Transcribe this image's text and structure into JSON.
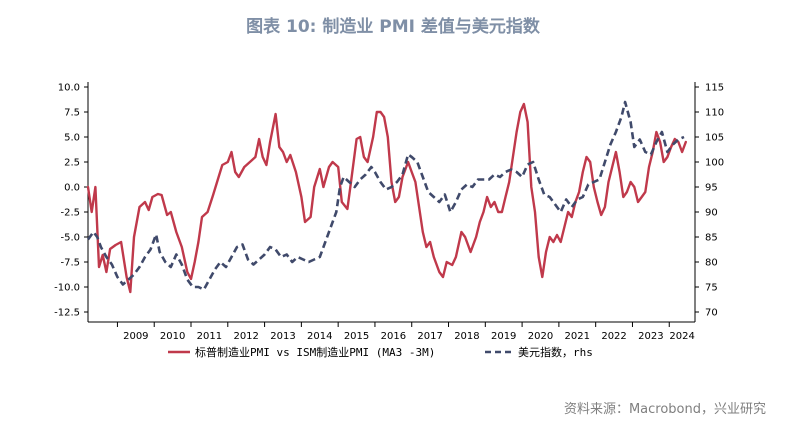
{
  "title": "图表 10: 制造业 PMI 差值与美元指数",
  "source": "资料来源：Macrobond，兴业研究",
  "chart_data": {
    "type": "line",
    "title": "图表 10: 制造业 PMI 差值与美元指数",
    "x_range": [
      2008.2,
      2024.7
    ],
    "x_tick_labels": [
      "2009",
      "2010",
      "2011",
      "2012",
      "2013",
      "2014",
      "2015",
      "2016",
      "2017",
      "2018",
      "2019",
      "2020",
      "2021",
      "2022",
      "2023",
      "2024"
    ],
    "y_left": {
      "min": -13.5,
      "max": 10.5,
      "ticks": [
        10.0,
        7.5,
        5.0,
        2.5,
        0.0,
        -2.5,
        -5.0,
        -7.5,
        -10.0,
        -12.5
      ]
    },
    "y_left_tick_labels": [
      "10.0",
      "7.5",
      "5.0",
      "2.5",
      "0.0",
      "-2.5",
      "-5.0",
      "-7.5",
      "-10.0",
      "-12.5"
    ],
    "y_right": {
      "min": 68,
      "max": 116,
      "ticks": [
        115,
        110,
        105,
        100,
        95,
        90,
        85,
        80,
        75,
        70
      ]
    },
    "y_right_tick_labels": [
      "115",
      "110",
      "105",
      "100",
      "95",
      "90",
      "85",
      "80",
      "75",
      "70"
    ],
    "series": [
      {
        "name": "标普制造业PMI vs ISM制造业PMI (MA3 -3M)",
        "axis": "left",
        "color": "#c0394b",
        "style": "solid",
        "points": [
          [
            2008.2,
            0.0
          ],
          [
            2008.3,
            -2.5
          ],
          [
            2008.4,
            0.0
          ],
          [
            2008.5,
            -8.0
          ],
          [
            2008.6,
            -6.8
          ],
          [
            2008.7,
            -8.5
          ],
          [
            2008.8,
            -6.2
          ],
          [
            2008.95,
            -5.8
          ],
          [
            2009.1,
            -5.5
          ],
          [
            2009.25,
            -9.0
          ],
          [
            2009.35,
            -10.5
          ],
          [
            2009.45,
            -5.0
          ],
          [
            2009.6,
            -2.0
          ],
          [
            2009.75,
            -1.5
          ],
          [
            2009.85,
            -2.3
          ],
          [
            2009.95,
            -1.0
          ],
          [
            2010.1,
            -0.7
          ],
          [
            2010.2,
            -0.8
          ],
          [
            2010.35,
            -2.8
          ],
          [
            2010.45,
            -2.5
          ],
          [
            2010.6,
            -4.5
          ],
          [
            2010.75,
            -6.0
          ],
          [
            2010.9,
            -8.5
          ],
          [
            2011.0,
            -9.2
          ],
          [
            2011.1,
            -7.5
          ],
          [
            2011.2,
            -5.5
          ],
          [
            2011.3,
            -3.0
          ],
          [
            2011.45,
            -2.5
          ],
          [
            2011.6,
            -0.8
          ],
          [
            2011.75,
            1.0
          ],
          [
            2011.85,
            2.2
          ],
          [
            2012.0,
            2.5
          ],
          [
            2012.1,
            3.5
          ],
          [
            2012.2,
            1.5
          ],
          [
            2012.3,
            1.0
          ],
          [
            2012.45,
            2.0
          ],
          [
            2012.6,
            2.5
          ],
          [
            2012.75,
            3.0
          ],
          [
            2012.85,
            4.8
          ],
          [
            2012.95,
            3.0
          ],
          [
            2013.05,
            2.2
          ],
          [
            2013.15,
            4.5
          ],
          [
            2013.3,
            7.3
          ],
          [
            2013.4,
            4.0
          ],
          [
            2013.5,
            3.5
          ],
          [
            2013.6,
            2.5
          ],
          [
            2013.7,
            3.2
          ],
          [
            2013.85,
            1.5
          ],
          [
            2014.0,
            -1.0
          ],
          [
            2014.1,
            -3.5
          ],
          [
            2014.25,
            -3.0
          ],
          [
            2014.35,
            0.0
          ],
          [
            2014.5,
            1.8
          ],
          [
            2014.6,
            0.0
          ],
          [
            2014.75,
            2.0
          ],
          [
            2014.85,
            2.5
          ],
          [
            2015.0,
            2.0
          ],
          [
            2015.1,
            -1.5
          ],
          [
            2015.25,
            -2.2
          ],
          [
            2015.35,
            0.5
          ],
          [
            2015.5,
            4.8
          ],
          [
            2015.6,
            5.0
          ],
          [
            2015.7,
            3.0
          ],
          [
            2015.8,
            2.5
          ],
          [
            2015.95,
            5.0
          ],
          [
            2016.05,
            7.5
          ],
          [
            2016.15,
            7.5
          ],
          [
            2016.25,
            7.0
          ],
          [
            2016.35,
            5.0
          ],
          [
            2016.45,
            0.5
          ],
          [
            2016.55,
            -1.5
          ],
          [
            2016.65,
            -1.0
          ],
          [
            2016.75,
            1.0
          ],
          [
            2016.9,
            2.5
          ],
          [
            2017.0,
            1.5
          ],
          [
            2017.1,
            0.5
          ],
          [
            2017.2,
            -2.0
          ],
          [
            2017.3,
            -4.5
          ],
          [
            2017.4,
            -6.0
          ],
          [
            2017.5,
            -5.5
          ],
          [
            2017.6,
            -7.0
          ],
          [
            2017.75,
            -8.5
          ],
          [
            2017.85,
            -9.0
          ],
          [
            2017.95,
            -7.5
          ],
          [
            2018.1,
            -7.8
          ],
          [
            2018.2,
            -7.0
          ],
          [
            2018.35,
            -4.5
          ],
          [
            2018.45,
            -5.0
          ],
          [
            2018.6,
            -6.5
          ],
          [
            2018.75,
            -5.0
          ],
          [
            2018.85,
            -3.5
          ],
          [
            2018.95,
            -2.5
          ],
          [
            2019.05,
            -1.0
          ],
          [
            2019.15,
            -2.0
          ],
          [
            2019.25,
            -1.5
          ],
          [
            2019.35,
            -2.5
          ],
          [
            2019.45,
            -2.5
          ],
          [
            2019.55,
            -1.0
          ],
          [
            2019.65,
            0.5
          ],
          [
            2019.75,
            3.0
          ],
          [
            2019.85,
            5.5
          ],
          [
            2019.95,
            7.5
          ],
          [
            2020.05,
            8.3
          ],
          [
            2020.15,
            6.5
          ],
          [
            2020.25,
            0.0
          ],
          [
            2020.35,
            -2.5
          ],
          [
            2020.45,
            -7.0
          ],
          [
            2020.55,
            -9.0
          ],
          [
            2020.65,
            -6.5
          ],
          [
            2020.75,
            -5.0
          ],
          [
            2020.85,
            -5.5
          ],
          [
            2020.95,
            -4.8
          ],
          [
            2021.05,
            -5.5
          ],
          [
            2021.15,
            -4.0
          ],
          [
            2021.25,
            -2.5
          ],
          [
            2021.35,
            -3.0
          ],
          [
            2021.45,
            -1.5
          ],
          [
            2021.55,
            -0.5
          ],
          [
            2021.65,
            1.5
          ],
          [
            2021.75,
            3.0
          ],
          [
            2021.85,
            2.5
          ],
          [
            2021.95,
            0.0
          ],
          [
            2022.05,
            -1.5
          ],
          [
            2022.15,
            -2.8
          ],
          [
            2022.25,
            -2.0
          ],
          [
            2022.35,
            0.5
          ],
          [
            2022.45,
            2.0
          ],
          [
            2022.55,
            3.5
          ],
          [
            2022.65,
            1.5
          ],
          [
            2022.75,
            -1.0
          ],
          [
            2022.85,
            -0.5
          ],
          [
            2022.95,
            0.5
          ],
          [
            2023.05,
            0.0
          ],
          [
            2023.15,
            -1.5
          ],
          [
            2023.25,
            -1.0
          ],
          [
            2023.35,
            -0.5
          ],
          [
            2023.45,
            2.0
          ],
          [
            2023.55,
            3.5
          ],
          [
            2023.65,
            5.5
          ],
          [
            2023.75,
            4.5
          ],
          [
            2023.85,
            2.5
          ],
          [
            2023.95,
            3.0
          ],
          [
            2024.05,
            4.0
          ],
          [
            2024.15,
            4.8
          ],
          [
            2024.25,
            4.5
          ],
          [
            2024.35,
            3.5
          ],
          [
            2024.45,
            4.5
          ]
        ]
      },
      {
        "name": "美元指数，rhs",
        "axis": "right",
        "color": "#404a6b",
        "style": "dashed",
        "points": [
          [
            2008.2,
            84.5
          ],
          [
            2008.35,
            86.0
          ],
          [
            2008.45,
            85.0
          ],
          [
            2008.55,
            83.0
          ],
          [
            2008.7,
            81.0
          ],
          [
            2008.85,
            79.5
          ],
          [
            2009.0,
            77.0
          ],
          [
            2009.15,
            75.5
          ],
          [
            2009.3,
            76.5
          ],
          [
            2009.45,
            77.5
          ],
          [
            2009.6,
            79.0
          ],
          [
            2009.75,
            81.0
          ],
          [
            2009.9,
            82.5
          ],
          [
            2010.05,
            85.5
          ],
          [
            2010.15,
            82.0
          ],
          [
            2010.3,
            80.0
          ],
          [
            2010.45,
            79.0
          ],
          [
            2010.6,
            81.5
          ],
          [
            2010.75,
            79.5
          ],
          [
            2010.9,
            76.5
          ],
          [
            2011.05,
            75.0
          ],
          [
            2011.2,
            75.0
          ],
          [
            2011.35,
            74.5
          ],
          [
            2011.5,
            76.5
          ],
          [
            2011.65,
            78.5
          ],
          [
            2011.8,
            80.0
          ],
          [
            2011.95,
            79.0
          ],
          [
            2012.1,
            81.0
          ],
          [
            2012.25,
            83.0
          ],
          [
            2012.4,
            83.5
          ],
          [
            2012.55,
            80.5
          ],
          [
            2012.7,
            79.5
          ],
          [
            2012.85,
            80.5
          ],
          [
            2013.0,
            81.5
          ],
          [
            2013.15,
            83.0
          ],
          [
            2013.3,
            82.5
          ],
          [
            2013.45,
            81.0
          ],
          [
            2013.6,
            81.5
          ],
          [
            2013.75,
            80.0
          ],
          [
            2013.9,
            81.0
          ],
          [
            2014.05,
            80.5
          ],
          [
            2014.2,
            80.0
          ],
          [
            2014.35,
            80.5
          ],
          [
            2014.5,
            81.0
          ],
          [
            2014.65,
            84.0
          ],
          [
            2014.8,
            87.0
          ],
          [
            2014.95,
            90.0
          ],
          [
            2015.05,
            95.0
          ],
          [
            2015.15,
            97.0
          ],
          [
            2015.3,
            96.0
          ],
          [
            2015.45,
            95.0
          ],
          [
            2015.6,
            96.5
          ],
          [
            2015.75,
            97.5
          ],
          [
            2015.9,
            99.0
          ],
          [
            2016.0,
            98.0
          ],
          [
            2016.15,
            96.0
          ],
          [
            2016.3,
            94.5
          ],
          [
            2016.45,
            95.0
          ],
          [
            2016.6,
            96.0
          ],
          [
            2016.75,
            97.5
          ],
          [
            2016.9,
            101.5
          ],
          [
            2017.0,
            101.0
          ],
          [
            2017.15,
            100.0
          ],
          [
            2017.3,
            97.0
          ],
          [
            2017.45,
            94.0
          ],
          [
            2017.6,
            93.0
          ],
          [
            2017.75,
            92.0
          ],
          [
            2017.9,
            93.5
          ],
          [
            2018.05,
            90.0
          ],
          [
            2018.2,
            92.0
          ],
          [
            2018.35,
            94.5
          ],
          [
            2018.5,
            95.5
          ],
          [
            2018.65,
            95.0
          ],
          [
            2018.8,
            96.5
          ],
          [
            2018.95,
            96.5
          ],
          [
            2019.1,
            96.5
          ],
          [
            2019.25,
            97.5
          ],
          [
            2019.4,
            97.0
          ],
          [
            2019.55,
            98.0
          ],
          [
            2019.7,
            98.5
          ],
          [
            2019.85,
            98.0
          ],
          [
            2020.0,
            97.0
          ],
          [
            2020.15,
            99.5
          ],
          [
            2020.3,
            100.0
          ],
          [
            2020.45,
            96.5
          ],
          [
            2020.6,
            93.5
          ],
          [
            2020.75,
            93.0
          ],
          [
            2020.9,
            91.5
          ],
          [
            2021.05,
            90.0
          ],
          [
            2021.2,
            92.5
          ],
          [
            2021.35,
            91.0
          ],
          [
            2021.5,
            92.5
          ],
          [
            2021.65,
            93.0
          ],
          [
            2021.8,
            95.5
          ],
          [
            2021.95,
            96.0
          ],
          [
            2022.1,
            96.5
          ],
          [
            2022.25,
            100.0
          ],
          [
            2022.4,
            103.5
          ],
          [
            2022.55,
            106.0
          ],
          [
            2022.7,
            109.0
          ],
          [
            2022.8,
            112.0
          ],
          [
            2022.95,
            108.0
          ],
          [
            2023.05,
            103.0
          ],
          [
            2023.2,
            104.5
          ],
          [
            2023.35,
            102.0
          ],
          [
            2023.5,
            101.5
          ],
          [
            2023.65,
            104.0
          ],
          [
            2023.8,
            106.0
          ],
          [
            2023.95,
            102.0
          ],
          [
            2024.1,
            103.5
          ],
          [
            2024.25,
            104.5
          ],
          [
            2024.4,
            105.0
          ]
        ]
      }
    ]
  }
}
